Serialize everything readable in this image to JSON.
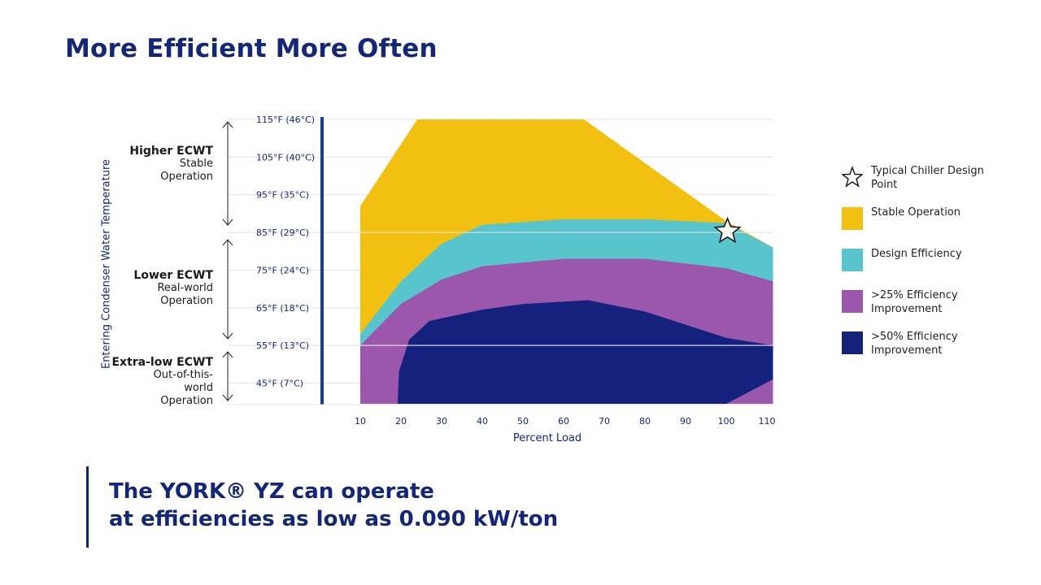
{
  "title": "More Efficient More Often",
  "chart_data": {
    "type": "area",
    "xlabel": "Percent Load",
    "ylabel": "Entering Condenser Water Temperature",
    "x_ticks": [
      10,
      20,
      30,
      40,
      50,
      60,
      70,
      80,
      90,
      100,
      110
    ],
    "y_ticks": [
      "115°F (46°C)",
      "105°F (40°C)",
      "95°F (35°C)",
      "85°F (29°C)",
      "75°F (24°C)",
      "65°F (18°C)",
      "55°F (13°C)",
      "45°F (7°C)"
    ],
    "y_tick_values": [
      115,
      105,
      95,
      85,
      75,
      65,
      55,
      45
    ],
    "xlim": [
      10,
      111.6
    ],
    "ylim": [
      39.5,
      115
    ],
    "series": [
      {
        "name": "Stable Operation",
        "color": "#f2c010",
        "upper": [
          [
            10,
            92
          ],
          [
            24,
            115
          ],
          [
            65,
            115
          ],
          [
            100,
            88
          ],
          [
            111.5,
            81
          ]
        ]
      },
      {
        "name": "Design Efficiency",
        "color": "#58c4cc",
        "upper": [
          [
            10,
            58
          ],
          [
            20,
            72
          ],
          [
            30,
            82
          ],
          [
            40,
            87
          ],
          [
            60,
            88.5
          ],
          [
            80,
            88.5
          ],
          [
            100,
            87.5
          ],
          [
            111.5,
            81
          ]
        ]
      },
      {
        "name": ">25% Efficiency Improvement",
        "color": "#9a57ab",
        "upper": [
          [
            10,
            55
          ],
          [
            20,
            66
          ],
          [
            30,
            72.5
          ],
          [
            40,
            76
          ],
          [
            60,
            78
          ],
          [
            80,
            78
          ],
          [
            100,
            75.5
          ],
          [
            111.5,
            72
          ]
        ]
      },
      {
        "name": ">50% Efficiency Improvement",
        "color": "#14227e",
        "upper": [
          [
            19.2,
            39.5
          ],
          [
            19.5,
            48
          ],
          [
            22,
            56.5
          ],
          [
            27,
            61.5
          ],
          [
            40,
            64.5
          ],
          [
            50,
            66
          ],
          [
            66,
            67
          ],
          [
            80,
            64
          ],
          [
            100,
            57
          ],
          [
            111.5,
            55
          ]
        ],
        "lower": [
          [
            19.2,
            39.5
          ],
          [
            100,
            39.5
          ],
          [
            111.5,
            46
          ]
        ]
      }
    ],
    "reference_lines": [
      85,
      55
    ],
    "annotation": {
      "label": "Typical Chiller Design Point",
      "x": 100.3,
      "y": 85.3
    },
    "grid": "horizontal",
    "legend": "right"
  },
  "bands": [
    {
      "head": "Higher ECWT",
      "sub": "Stable Operation"
    },
    {
      "head": "Lower ECWT",
      "sub": "Real-world Operation"
    },
    {
      "head": "Extra-low ECWT",
      "sub": "Out-of-this-world Operation"
    }
  ],
  "legend": [
    {
      "label": "Typical Chiller Design Point",
      "icon": "star-icon"
    },
    {
      "label": "Stable Operation",
      "color": "#f2c010"
    },
    {
      "label": "Design Efficiency",
      "color": "#58c4cc"
    },
    {
      "label": ">25% Efficiency Improvement",
      "color": "#9a57ab"
    },
    {
      "label": ">50% Efficiency Improvement",
      "color": "#14227e"
    }
  ],
  "callout": {
    "line1": "The YORK® YZ can operate",
    "line2": "at efficiencies as low as 0.090 kW/ton"
  },
  "colors": {
    "brand": "#14267a",
    "axis_bar": "#1f3a93"
  }
}
